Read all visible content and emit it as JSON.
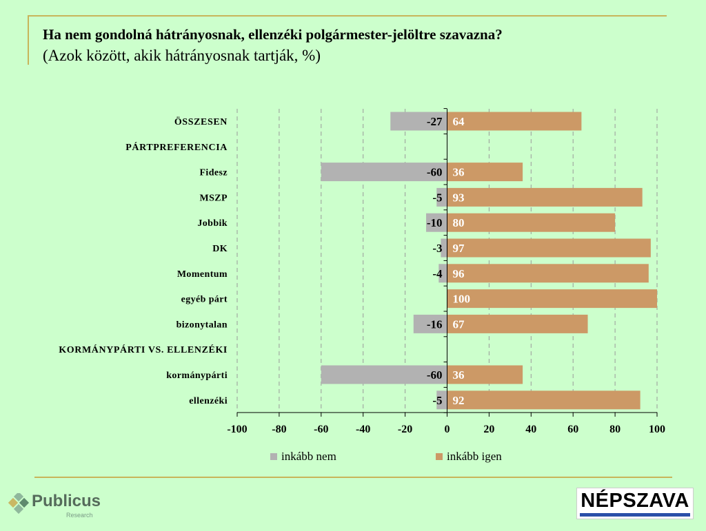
{
  "header": {
    "title": "Ha nem gondolná hátrányosnak, ellenzéki polgármester-jelöltre szavazna?",
    "subtitle": "(Azok között, akik hátrányosnak tartják, %)"
  },
  "colors": {
    "background": "#ccffcc",
    "rule": "#c8b45a",
    "nem": "#b2b2b2",
    "igen": "#cc9966",
    "grid": "#999999"
  },
  "chart_data": {
    "type": "bar",
    "orientation": "horizontal",
    "stacked": "diverging",
    "categories": [
      "ÖSSZESEN",
      "PÁRTPREFERENCIA",
      "Fidesz",
      "MSZP",
      "Jobbik",
      "DK",
      "Momentum",
      "egyéb párt",
      "bizonytalan",
      "KORMÁNYPÁRTI VS. ELLENZÉKI",
      "kormánypárti",
      "ellenzéki"
    ],
    "bold_categories": [
      "ÖSSZESEN",
      "PÁRTPREFERENCIA",
      "KORMÁNYPÁRTI VS. ELLENZÉKI"
    ],
    "series": [
      {
        "name": "inkább nem",
        "values": [
          -27,
          null,
          -60,
          -5,
          -10,
          -3,
          -4,
          null,
          -16,
          null,
          -60,
          -5
        ]
      },
      {
        "name": "inkább igen",
        "values": [
          64,
          null,
          36,
          93,
          80,
          97,
          96,
          100,
          67,
          null,
          36,
          92
        ]
      }
    ],
    "xlim": [
      -100,
      100
    ],
    "xticks": [
      -100,
      -80,
      -60,
      -40,
      -20,
      0,
      20,
      40,
      60,
      80,
      100
    ],
    "xtick_labels": [
      "-100",
      "-80",
      "-60",
      "-40",
      "-20",
      "0",
      "20",
      "40",
      "60",
      "80",
      "100"
    ],
    "grid": true,
    "legend": {
      "placement": "bottom",
      "entries": [
        "inkább nem",
        "inkább igen"
      ]
    }
  },
  "logos": {
    "publicus": {
      "name": "Publicus",
      "sub": "Research"
    },
    "nepszava": {
      "name": "NÉPSZAVA"
    }
  }
}
